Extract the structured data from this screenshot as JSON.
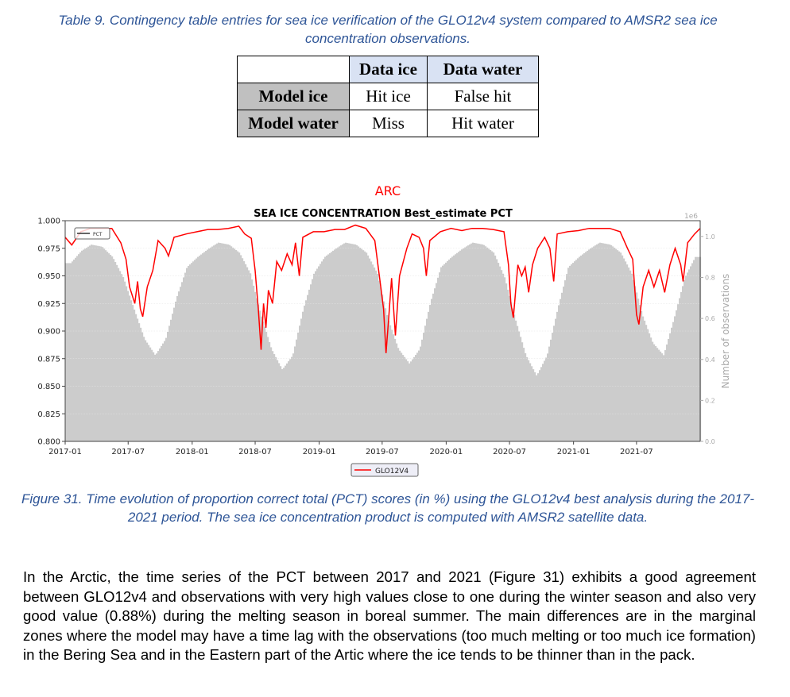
{
  "table_caption": "Table 9. Contingency table entries for sea ice verification of the GLO12v4 system compared to AMSR2 sea ice concentration observations.",
  "contingency_table": {
    "col_headers": [
      "",
      "Data ice",
      "Data water"
    ],
    "rows": [
      {
        "header": "Model ice",
        "cells": [
          "Hit ice",
          "False hit"
        ]
      },
      {
        "header": "Model water",
        "cells": [
          "Miss",
          "Hit water"
        ]
      }
    ],
    "colors": {
      "col_header_bg": "#d9e2f3",
      "row_header_bg": "#c0c0c0"
    }
  },
  "chart_data": {
    "type": "line",
    "region_title": "ARC",
    "title": "SEA ICE CONCENTRATION Best_estimate PCT",
    "xlabel": "",
    "ylabel": "",
    "y2label": "Number of observations",
    "y2_scale_label": "1e6",
    "xlim": [
      "2017-01-01",
      "2021-12-31"
    ],
    "ylim": [
      0.8,
      1.0
    ],
    "y2lim": [
      0.0,
      1.077
    ],
    "x_ticks": [
      "2017-01",
      "2017-07",
      "2018-01",
      "2018-07",
      "2019-01",
      "2019-07",
      "2020-01",
      "2020-07",
      "2021-01",
      "2021-07"
    ],
    "y_ticks": [
      "0.800",
      "0.825",
      "0.850",
      "0.875",
      "0.900",
      "0.925",
      "0.950",
      "0.975",
      "1.000"
    ],
    "y2_ticks": [
      "0.0",
      "0.2",
      "0.4",
      "0.6",
      "0.8",
      "1.0"
    ],
    "grid": true,
    "legend_inner": {
      "label": "PCT",
      "placement": "top-left"
    },
    "legend_outer": {
      "label": "GLO12V4",
      "placement": "bottom-center"
    },
    "colors": {
      "pct_line": "#ff0000",
      "obs_bars": "#cccccc",
      "title": "#ff0000",
      "axis2": "#aaaaaa"
    },
    "series": [
      {
        "name": "GLO12V4 PCT",
        "axis": "left",
        "points": [
          [
            "2017-01-01",
            0.985
          ],
          [
            "2017-01-20",
            0.978
          ],
          [
            "2017-02-15",
            0.99
          ],
          [
            "2017-03-15",
            0.993
          ],
          [
            "2017-04-15",
            0.993
          ],
          [
            "2017-05-15",
            0.993
          ],
          [
            "2017-06-10",
            0.98
          ],
          [
            "2017-06-25",
            0.965
          ],
          [
            "2017-07-05",
            0.94
          ],
          [
            "2017-07-20",
            0.925
          ],
          [
            "2017-07-28",
            0.945
          ],
          [
            "2017-08-05",
            0.92
          ],
          [
            "2017-08-12",
            0.913
          ],
          [
            "2017-08-25",
            0.94
          ],
          [
            "2017-09-10",
            0.955
          ],
          [
            "2017-09-25",
            0.982
          ],
          [
            "2017-10-15",
            0.975
          ],
          [
            "2017-10-25",
            0.968
          ],
          [
            "2017-11-10",
            0.985
          ],
          [
            "2017-12-15",
            0.988
          ],
          [
            "2018-01-15",
            0.99
          ],
          [
            "2018-02-15",
            0.992
          ],
          [
            "2018-03-15",
            0.992
          ],
          [
            "2018-04-15",
            0.993
          ],
          [
            "2018-05-15",
            0.995
          ],
          [
            "2018-06-01",
            0.988
          ],
          [
            "2018-06-20",
            0.984
          ],
          [
            "2018-07-01",
            0.955
          ],
          [
            "2018-07-10",
            0.92
          ],
          [
            "2018-07-18",
            0.883
          ],
          [
            "2018-07-25",
            0.925
          ],
          [
            "2018-08-01",
            0.903
          ],
          [
            "2018-08-08",
            0.937
          ],
          [
            "2018-08-20",
            0.925
          ],
          [
            "2018-09-01",
            0.963
          ],
          [
            "2018-09-15",
            0.955
          ],
          [
            "2018-10-01",
            0.97
          ],
          [
            "2018-10-15",
            0.96
          ],
          [
            "2018-10-25",
            0.98
          ],
          [
            "2018-11-05",
            0.95
          ],
          [
            "2018-11-15",
            0.985
          ],
          [
            "2018-12-15",
            0.99
          ],
          [
            "2019-01-15",
            0.99
          ],
          [
            "2019-02-15",
            0.992
          ],
          [
            "2019-03-15",
            0.992
          ],
          [
            "2019-04-15",
            0.996
          ],
          [
            "2019-05-15",
            0.993
          ],
          [
            "2019-06-10",
            0.982
          ],
          [
            "2019-06-25",
            0.945
          ],
          [
            "2019-07-05",
            0.92
          ],
          [
            "2019-07-12",
            0.88
          ],
          [
            "2019-07-20",
            0.913
          ],
          [
            "2019-07-28",
            0.948
          ],
          [
            "2019-08-08",
            0.896
          ],
          [
            "2019-08-20",
            0.95
          ],
          [
            "2019-09-10",
            0.975
          ],
          [
            "2019-09-25",
            0.988
          ],
          [
            "2019-10-15",
            0.985
          ],
          [
            "2019-10-28",
            0.975
          ],
          [
            "2019-11-05",
            0.95
          ],
          [
            "2019-11-15",
            0.982
          ],
          [
            "2019-12-15",
            0.99
          ],
          [
            "2020-01-15",
            0.993
          ],
          [
            "2020-02-15",
            0.991
          ],
          [
            "2020-03-15",
            0.993
          ],
          [
            "2020-04-15",
            0.993
          ],
          [
            "2020-05-15",
            0.992
          ],
          [
            "2020-06-15",
            0.99
          ],
          [
            "2020-06-28",
            0.96
          ],
          [
            "2020-07-05",
            0.925
          ],
          [
            "2020-07-12",
            0.912
          ],
          [
            "2020-07-25",
            0.96
          ],
          [
            "2020-08-05",
            0.95
          ],
          [
            "2020-08-15",
            0.958
          ],
          [
            "2020-08-25",
            0.935
          ],
          [
            "2020-09-05",
            0.96
          ],
          [
            "2020-09-20",
            0.975
          ],
          [
            "2020-10-10",
            0.985
          ],
          [
            "2020-10-25",
            0.975
          ],
          [
            "2020-11-05",
            0.945
          ],
          [
            "2020-11-15",
            0.988
          ],
          [
            "2020-12-15",
            0.99
          ],
          [
            "2021-01-15",
            0.991
          ],
          [
            "2021-02-15",
            0.993
          ],
          [
            "2021-03-15",
            0.993
          ],
          [
            "2021-04-15",
            0.993
          ],
          [
            "2021-05-15",
            0.99
          ],
          [
            "2021-06-05",
            0.975
          ],
          [
            "2021-06-20",
            0.965
          ],
          [
            "2021-07-01",
            0.915
          ],
          [
            "2021-07-08",
            0.906
          ],
          [
            "2021-07-20",
            0.94
          ],
          [
            "2021-08-05",
            0.955
          ],
          [
            "2021-08-20",
            0.94
          ],
          [
            "2021-09-05",
            0.955
          ],
          [
            "2021-09-20",
            0.935
          ],
          [
            "2021-10-05",
            0.96
          ],
          [
            "2021-10-20",
            0.975
          ],
          [
            "2021-11-05",
            0.96
          ],
          [
            "2021-11-12",
            0.945
          ],
          [
            "2021-11-25",
            0.98
          ],
          [
            "2021-12-15",
            0.988
          ],
          [
            "2021-12-31",
            0.993
          ]
        ]
      },
      {
        "name": "Number of observations (1e6)",
        "axis": "right",
        "monthly_start": "2017-01",
        "values": [
          0.87,
          0.93,
          0.96,
          0.95,
          0.9,
          0.8,
          0.65,
          0.5,
          0.42,
          0.5,
          0.7,
          0.85,
          0.9,
          0.94,
          0.97,
          0.96,
          0.92,
          0.82,
          0.62,
          0.45,
          0.35,
          0.42,
          0.65,
          0.82,
          0.9,
          0.94,
          0.97,
          0.96,
          0.92,
          0.82,
          0.6,
          0.45,
          0.38,
          0.45,
          0.68,
          0.85,
          0.9,
          0.94,
          0.97,
          0.96,
          0.92,
          0.8,
          0.6,
          0.42,
          0.32,
          0.42,
          0.65,
          0.85,
          0.9,
          0.94,
          0.97,
          0.96,
          0.92,
          0.82,
          0.62,
          0.48,
          0.42,
          0.6,
          0.8,
          0.9
        ]
      }
    ]
  },
  "figure_caption": "Figure 31. Time evolution of proportion correct total (PCT) scores (in %) using the GLO12v4 best analysis during the 2017-2021 period. The sea ice concentration product is computed with AMSR2 satellite data.",
  "body_text": "In the Arctic, the time series of the PCT between 2017 and 2021 (Figure 31) exhibits a good agreement between GLO12v4 and observations with very high values close to one during the winter season and also very good value (0.88%) during the melting season in boreal summer. The main differences are in the marginal zones where the model may have a time lag with the observations (too much melting or too much ice formation) in the Bering Sea and in the Eastern part of the Artic where the ice tends to be thinner than in the pack."
}
